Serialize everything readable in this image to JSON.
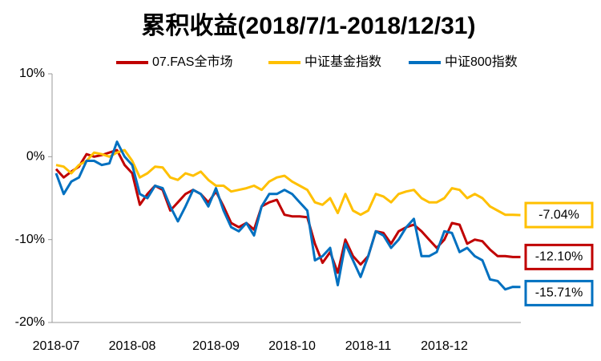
{
  "chart_data": {
    "type": "line",
    "title": "累积收益(2018/7/1-2018/12/31)",
    "categories": [
      "2018-07",
      null,
      null,
      null,
      null,
      null,
      null,
      null,
      null,
      null,
      "2018-08",
      null,
      null,
      null,
      null,
      null,
      null,
      null,
      null,
      null,
      null,
      "2018-09",
      null,
      null,
      null,
      null,
      null,
      null,
      null,
      null,
      null,
      "2018-10",
      null,
      null,
      null,
      null,
      null,
      null,
      null,
      null,
      null,
      "2018-11",
      null,
      null,
      null,
      null,
      null,
      null,
      null,
      null,
      null,
      "2018-12",
      null,
      null,
      null,
      null,
      null,
      null,
      null,
      null,
      null,
      null
    ],
    "series": [
      {
        "name": "07.FAS全市场",
        "color": "#c00000",
        "values": [
          -1.5,
          -2.5,
          -1.8,
          -1.2,
          0.3,
          0,
          0.2,
          0.5,
          0.8,
          -1,
          -2,
          -5.8,
          -4.5,
          -3.5,
          -4,
          -6.5,
          -5.5,
          -4.5,
          -4,
          -4.5,
          -5.5,
          -4.2,
          -6,
          -8,
          -8.5,
          -8,
          -8.8,
          -6,
          -5.5,
          -5.2,
          -7,
          -7.2,
          -7.2,
          -7.3,
          -10.5,
          -12.8,
          -11.5,
          -14,
          -10,
          -12,
          -13,
          -12,
          -9,
          -9.2,
          -10.5,
          -9,
          -8.5,
          -8.2,
          -9,
          -10,
          -11,
          -10,
          -8,
          -8.2,
          -10.5,
          -10,
          -10.2,
          -11.2,
          -12,
          -12,
          -12.1,
          -12.1
        ],
        "value_labels": [
          null,
          null,
          null,
          null,
          null,
          null,
          null,
          null,
          null,
          null,
          null,
          null,
          null,
          null,
          null,
          null,
          null,
          null,
          null,
          null,
          null,
          null,
          null,
          null,
          null,
          null,
          null,
          null,
          null,
          null,
          null,
          null,
          null,
          null,
          null,
          null,
          null,
          null,
          null,
          null,
          null,
          null,
          null,
          null,
          null,
          null,
          null,
          null,
          null,
          null,
          null,
          null,
          null,
          null,
          null,
          null,
          null,
          null,
          null,
          null,
          null,
          "-12.10%"
        ]
      },
      {
        "name": "中证基金指数",
        "color": "#ffc000",
        "values": [
          -1,
          -1.2,
          -2,
          -1,
          -0.5,
          0.5,
          0.3,
          0,
          0.5,
          0.8,
          -0.5,
          -2.5,
          -2,
          -1.2,
          -1.3,
          -2.5,
          -2.8,
          -2,
          -2.3,
          -1.8,
          -2.8,
          -3.5,
          -3.5,
          -4.2,
          -4,
          -3.8,
          -3.5,
          -4,
          -3,
          -2.5,
          -2.3,
          -3,
          -3.5,
          -4,
          -5.5,
          -5.8,
          -5,
          -6.8,
          -4.5,
          -6.5,
          -7,
          -6.5,
          -4.5,
          -4.8,
          -5.5,
          -4.5,
          -4.2,
          -4,
          -5,
          -5.5,
          -5.5,
          -5,
          -3.8,
          -4,
          -5,
          -4.5,
          -5,
          -6,
          -6.5,
          -7,
          -7,
          -7.04
        ],
        "value_labels": [
          null,
          null,
          null,
          null,
          null,
          null,
          null,
          null,
          null,
          null,
          null,
          null,
          null,
          null,
          null,
          null,
          null,
          null,
          null,
          null,
          null,
          null,
          null,
          null,
          null,
          null,
          null,
          null,
          null,
          null,
          null,
          null,
          null,
          null,
          null,
          null,
          null,
          null,
          null,
          null,
          null,
          null,
          null,
          null,
          null,
          null,
          null,
          null,
          null,
          null,
          null,
          null,
          null,
          null,
          null,
          null,
          null,
          null,
          null,
          null,
          null,
          "-7.04%"
        ]
      },
      {
        "name": "中证800指数",
        "color": "#0070c0",
        "values": [
          -2,
          -4.5,
          -3,
          -2.5,
          -0.5,
          -0.5,
          -1,
          -0.8,
          1.8,
          0,
          -1,
          -4.5,
          -5,
          -3.5,
          -3.8,
          -6,
          -7.8,
          -6,
          -4,
          -4.5,
          -6,
          -3.8,
          -6.5,
          -8.5,
          -9,
          -8,
          -9.5,
          -6,
          -4.5,
          -4.5,
          -4,
          -4.5,
          -5.5,
          -6.5,
          -12.5,
          -12,
          -11,
          -15.5,
          -10.5,
          -12.5,
          -14.5,
          -12,
          -9,
          -9.5,
          -11,
          -10,
          -8.5,
          -7.5,
          -12,
          -12,
          -11.5,
          -9,
          -9.2,
          -11.5,
          -11,
          -12,
          -12.5,
          -14.8,
          -15,
          -16,
          -15.7,
          -15.71
        ],
        "value_labels": [
          null,
          null,
          null,
          null,
          null,
          null,
          null,
          null,
          null,
          null,
          null,
          null,
          null,
          null,
          null,
          null,
          null,
          null,
          null,
          null,
          null,
          null,
          null,
          null,
          null,
          null,
          null,
          null,
          null,
          null,
          null,
          null,
          null,
          null,
          null,
          null,
          null,
          null,
          null,
          null,
          null,
          null,
          null,
          null,
          null,
          null,
          null,
          null,
          null,
          null,
          null,
          null,
          null,
          null,
          null,
          null,
          null,
          null,
          null,
          null,
          null,
          "-15.71%"
        ]
      }
    ],
    "ylim": [
      -20,
      10
    ],
    "yticks": [
      {
        "value": -20,
        "label": "-20%"
      },
      {
        "value": -10,
        "label": "-10%"
      },
      {
        "value": 0,
        "label": "0%"
      },
      {
        "value": 10,
        "label": "10%"
      }
    ],
    "grid": false,
    "legend": "top"
  }
}
